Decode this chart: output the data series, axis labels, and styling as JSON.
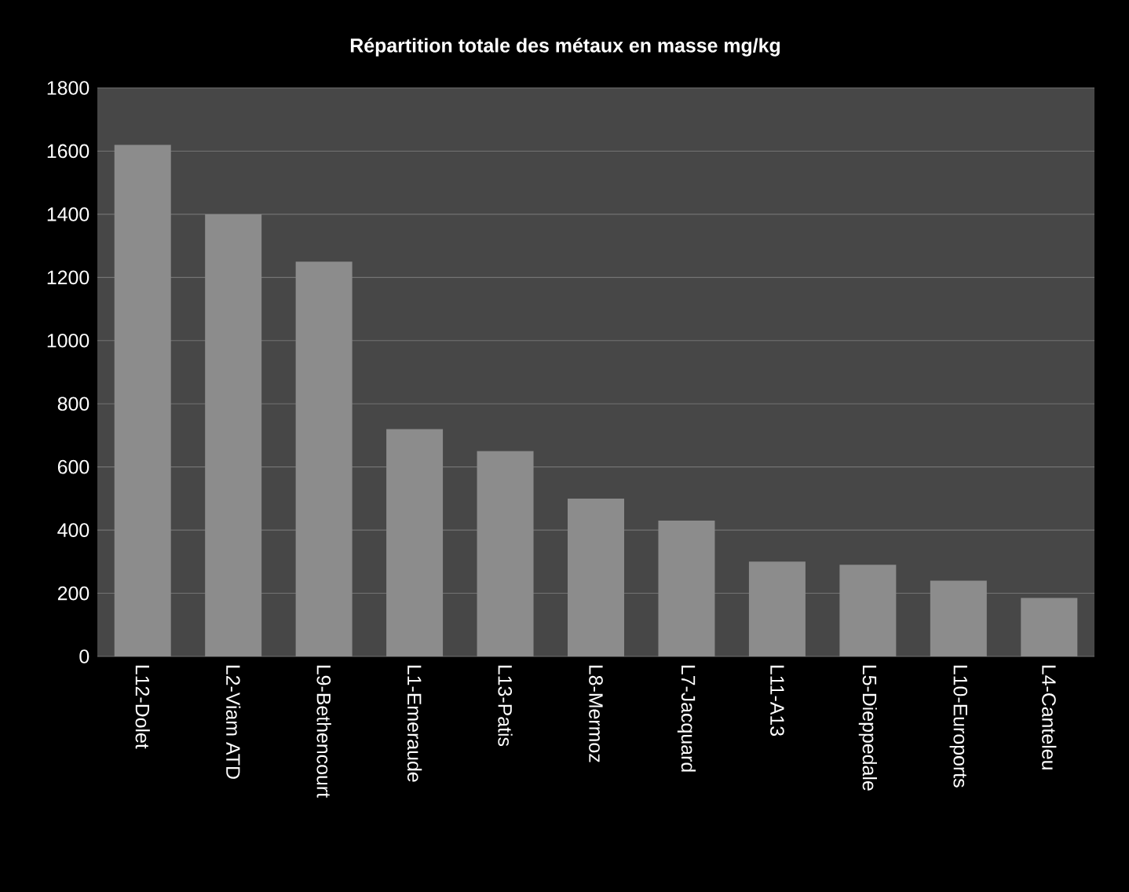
{
  "chart_data": {
    "type": "bar",
    "title": "Répartition  totale des métaux en masse  mg/kg",
    "categories": [
      "L12-Dolet",
      "L2-Viam ATD",
      "L9-Bethencourt",
      "L1-Emeraude",
      "L13-Patis",
      "L8-Mermoz",
      "L7-Jacquard",
      "L11-A13",
      "L5-Dieppedale",
      "L10-Euroports",
      "L4-Canteleu"
    ],
    "values": [
      1620,
      1400,
      1250,
      720,
      650,
      500,
      430,
      300,
      290,
      240,
      185
    ],
    "color": "#8c8c8c",
    "ylim": [
      0,
      1800
    ],
    "yticks": [
      0,
      200,
      400,
      600,
      800,
      1000,
      1200,
      1400,
      1600,
      1800
    ],
    "grid": "y"
  }
}
